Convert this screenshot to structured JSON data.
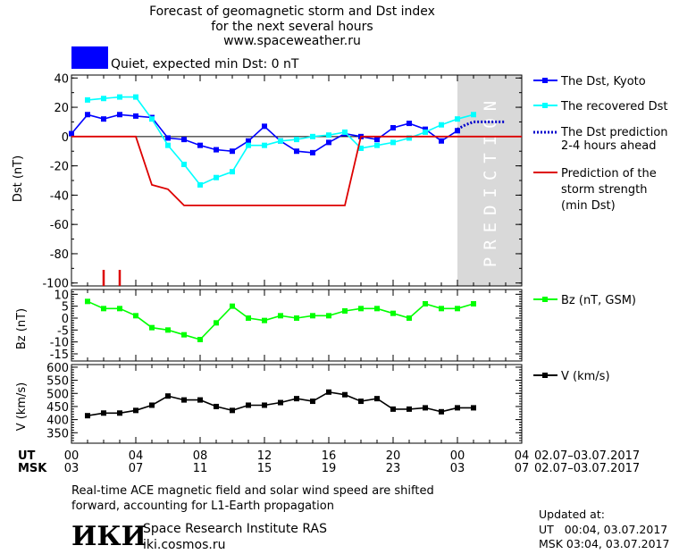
{
  "header": {
    "title_line1": "Forecast of geomagnetic storm and Dst index",
    "title_line2": "for the next several hours",
    "title_line3": "www.spaceweather.ru"
  },
  "status": {
    "text": "Quiet, expected min Dst: 0 nT",
    "color": "#0000ff"
  },
  "prediction_label": "PREDICTION",
  "chart_data": [
    {
      "type": "line",
      "panel": "dst",
      "ylabel": "Dst (nT)",
      "ylim": [
        -102,
        42
      ],
      "yticks": [
        40,
        20,
        0,
        -20,
        -40,
        -60,
        -80,
        -100
      ],
      "series": [
        {
          "name": "The Dst, Kyoto",
          "color": "#0000ff",
          "x": [
            0,
            1,
            2,
            3,
            4,
            5,
            6,
            7,
            8,
            9,
            10,
            11,
            12,
            13,
            14,
            15,
            16,
            17,
            18,
            19,
            20,
            21,
            22,
            23,
            24
          ],
          "values": [
            2,
            15,
            12,
            15,
            14,
            13,
            -1,
            -2,
            -6,
            -9,
            -10,
            -3,
            7,
            -3,
            -10,
            -11,
            -4,
            2,
            0,
            -2,
            6,
            9,
            5,
            -3,
            4
          ]
        },
        {
          "name": "The recovered Dst",
          "color": "#00ffff",
          "x": [
            1,
            2,
            3,
            4,
            5,
            6,
            7,
            8,
            9,
            10,
            11,
            12,
            13,
            14,
            15,
            16,
            17,
            18,
            19,
            20,
            21,
            22,
            23,
            24,
            25
          ],
          "values": [
            25,
            26,
            27,
            27,
            12,
            -6,
            -19,
            -33,
            -28,
            -24,
            -6,
            -6,
            -3,
            -2,
            0,
            1,
            3,
            -8,
            -6,
            -4,
            -1,
            3,
            8,
            12,
            15
          ]
        },
        {
          "name": "The Dst prediction",
          "label_line2": "2-4 hours ahead",
          "color": "#0000cc",
          "style": "dotted",
          "x": [
            24,
            24.5,
            25,
            26,
            27
          ],
          "values": [
            5,
            8,
            10,
            10,
            10
          ]
        },
        {
          "name": "Prediction of the",
          "label_line2": "storm strength",
          "label_line3": "(min Dst)",
          "color": "#dd0000",
          "x": [
            0,
            4,
            5,
            6,
            7,
            8,
            9,
            10,
            11,
            12,
            13,
            14,
            15,
            16,
            17,
            18,
            24,
            28
          ],
          "values": [
            0,
            0,
            -33,
            -36,
            -47,
            -47,
            -47,
            -47,
            -47,
            -47,
            -47,
            -47,
            -47,
            -47,
            -47,
            0,
            0,
            0
          ]
        }
      ],
      "markers": {
        "color": "#dd0000",
        "x": [
          2,
          3
        ]
      }
    },
    {
      "type": "line",
      "panel": "bz",
      "ylabel": "Bz (nT)",
      "ylim": [
        -18,
        12
      ],
      "yticks": [
        10,
        5,
        0,
        -5,
        -10,
        -15
      ],
      "series": [
        {
          "name": "Bz (nT, GSM)",
          "color": "#00ff00",
          "x": [
            1,
            2,
            3,
            4,
            5,
            6,
            7,
            8,
            9,
            10,
            11,
            12,
            13,
            14,
            15,
            16,
            17,
            18,
            19,
            20,
            21,
            22,
            23,
            24,
            25
          ],
          "values": [
            7,
            4,
            4,
            1,
            -4,
            -5,
            -7,
            -9,
            -2,
            5,
            0,
            -1,
            1,
            0,
            1,
            1,
            3,
            4,
            4,
            2,
            0,
            6,
            4,
            4,
            6
          ]
        }
      ]
    },
    {
      "type": "line",
      "panel": "v",
      "ylabel": "V (km/s)",
      "ylim": [
        310,
        610
      ],
      "yticks": [
        600,
        550,
        500,
        450,
        400,
        350
      ],
      "series": [
        {
          "name": "V (km/s)",
          "color": "#000000",
          "x": [
            1,
            2,
            3,
            4,
            5,
            6,
            7,
            8,
            9,
            10,
            11,
            12,
            13,
            14,
            15,
            16,
            17,
            18,
            19,
            20,
            21,
            22,
            23,
            24,
            25
          ],
          "values": [
            415,
            425,
            425,
            435,
            455,
            490,
            475,
            475,
            450,
            435,
            455,
            455,
            465,
            480,
            470,
            505,
            495,
            470,
            480,
            440,
            440,
            445,
            430,
            445,
            445
          ]
        }
      ]
    }
  ],
  "axis": {
    "xlim": [
      0,
      28
    ],
    "ut_label": "UT",
    "msk_label": "MSK",
    "ut_ticks": [
      "00",
      "04",
      "08",
      "12",
      "16",
      "20",
      "00",
      "04"
    ],
    "msk_ticks": [
      "03",
      "07",
      "11",
      "15",
      "19",
      "23",
      "03",
      "07"
    ],
    "tick_x": [
      0,
      4,
      8,
      12,
      16,
      20,
      24,
      28
    ],
    "date_range_ut": "02.07–03.07.2017",
    "date_range_msk": "02.07–03.07.2017",
    "prediction_from": 24,
    "prediction_to": 28,
    "prediction_color": "#d9d9d9"
  },
  "footer": {
    "note_line1": "Real-time ACE magnetic field and solar wind speed are shifted",
    "note_line2": "forward, accounting for L1-Earth propagation",
    "logo_text": "ИКИ",
    "org_name": "Space Research Institute RAS",
    "org_url": "iki.cosmos.ru",
    "updated_label": "Updated at:",
    "updated_ut": "UT   00:04, 03.07.2017",
    "updated_msk": "MSK 03:04, 03.07.2017"
  }
}
